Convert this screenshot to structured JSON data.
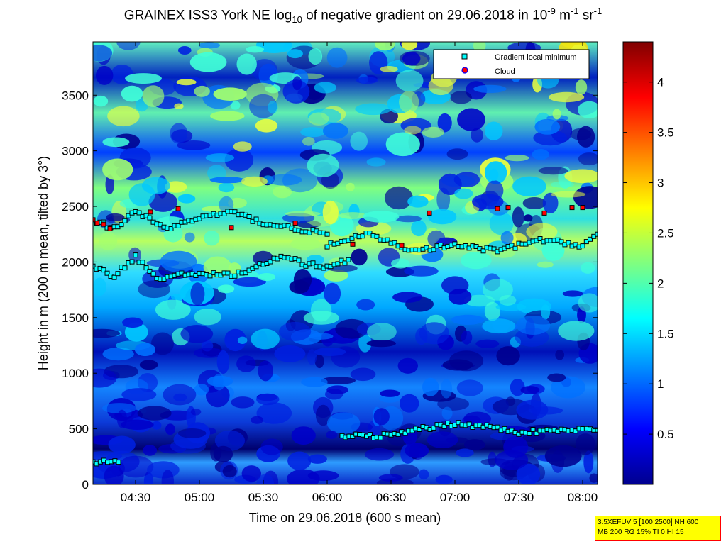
{
  "chart_data": {
    "type": "heatmap",
    "title": {
      "pre": "GRAINEX ISS3 York NE log",
      "sub": "10",
      "mid": " of negative gradient on 29.06.2018 in 10",
      "sup1": "-9",
      "m": " m",
      "sup2": "-1",
      "sr": " sr",
      "sup3": "-1"
    },
    "xlabel": "Time on 29.06.2018 (600 s mean)",
    "ylabel": "Height in m (200 m mean, tilted by 3°)",
    "xlim": [
      "04:10",
      "08:07"
    ],
    "ylim": [
      0,
      3980
    ],
    "xticks": [
      "04:30",
      "05:00",
      "05:30",
      "06:00",
      "06:30",
      "07:00",
      "07:30",
      "08:00"
    ],
    "yticks": [
      0,
      500,
      1000,
      1500,
      2000,
      2500,
      3000,
      3500
    ],
    "colorbar": {
      "range": [
        0,
        4.4
      ],
      "ticks": [
        "0.5",
        "1",
        "1.5",
        "2",
        "2.5",
        "3",
        "3.5",
        "4"
      ]
    },
    "legend": {
      "position": "top-right",
      "items": [
        "Gradient local minimum",
        "Cloud"
      ]
    },
    "series": [
      {
        "name": "Gradient local minimum",
        "marker": "square",
        "color": "#00ffff",
        "layers": [
          {
            "x": [
              "04:10",
              "04:22"
            ],
            "y": [
              200,
              200
            ]
          },
          {
            "x": [
              "04:10",
              "04:20",
              "04:30",
              "04:40",
              "04:50",
              "05:00",
              "05:10",
              "05:20",
              "05:30",
              "05:40",
              "05:50",
              "06:00",
              "06:10"
            ],
            "y": [
              1950,
              1880,
              2050,
              1850,
              1880,
              1900,
              1880,
              1900,
              1980,
              2050,
              1980,
              1960,
              2020
            ]
          },
          {
            "x": [
              "04:10",
              "04:20",
              "04:30",
              "04:45",
              "05:00",
              "05:15",
              "05:30",
              "05:45",
              "06:00"
            ],
            "y": [
              2380,
              2300,
              2450,
              2300,
              2400,
              2450,
              2350,
              2300,
              2250
            ]
          },
          {
            "x": [
              "06:07",
              "06:30",
              "06:45",
              "07:00",
              "07:15",
              "07:30",
              "07:45",
              "08:00",
              "08:07"
            ],
            "y": [
              430,
              440,
              500,
              550,
              520,
              470,
              480,
              490,
              490
            ]
          },
          {
            "x": [
              "06:00",
              "06:20",
              "06:40",
              "07:00",
              "07:20",
              "07:40",
              "08:00",
              "08:07"
            ],
            "y": [
              2150,
              2250,
              2100,
              2150,
              2100,
              2200,
              2150,
              2250
            ]
          }
        ]
      },
      {
        "name": "Cloud",
        "marker": "circle",
        "color": "#ff0000",
        "x": [
          "04:10",
          "04:12",
          "04:15",
          "04:18",
          "04:37",
          "04:50",
          "05:15",
          "05:45",
          "06:12",
          "06:35",
          "06:48",
          "07:20",
          "07:25",
          "07:42",
          "07:55",
          "08:00"
        ],
        "y": [
          2380,
          2350,
          2340,
          2300,
          2450,
          2480,
          2310,
          2350,
          2160,
          2150,
          2440,
          2480,
          2490,
          2440,
          2490,
          2490
        ]
      }
    ]
  },
  "infobox": {
    "line1": "3.5XEFUV 5 [100 2500] NH 600",
    "line2": "MB 200 RG 15% TI 0 HI 15"
  }
}
